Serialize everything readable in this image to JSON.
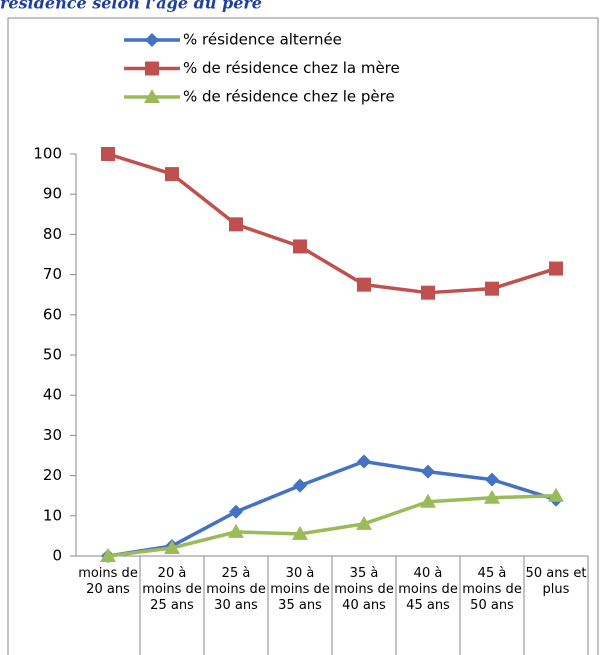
{
  "chart_data": {
    "type": "line",
    "title": "résidence selon l'âge du père",
    "categories": [
      "moins de 20 ans",
      "20 à moins de 25 ans",
      "25 à moins de 30 ans",
      "30 à moins de 35 ans",
      "35 à moins de 40 ans",
      "40 à moins de 45 ans",
      "45 à moins de 50 ans",
      "50 ans et plus"
    ],
    "series": [
      {
        "name": "% résidence alternée",
        "color": "#4472c4",
        "marker": "diamond",
        "values": [
          0,
          2.5,
          11,
          17.5,
          23.5,
          21,
          19,
          14
        ]
      },
      {
        "name": "% de résidence chez la mère",
        "color": "#c0504d",
        "marker": "square",
        "values": [
          100,
          95,
          82.5,
          77,
          67.5,
          65.5,
          66.5,
          71.5
        ]
      },
      {
        "name": "% de résidence chez le père",
        "color": "#9bbb59",
        "marker": "triangle",
        "values": [
          0,
          2,
          6,
          5.5,
          8,
          13.5,
          14.5,
          15
        ]
      }
    ],
    "ylim": [
      0,
      100
    ],
    "yticks": [
      0,
      10,
      20,
      30,
      40,
      50,
      60,
      70,
      80,
      90,
      100
    ],
    "grid": false
  }
}
